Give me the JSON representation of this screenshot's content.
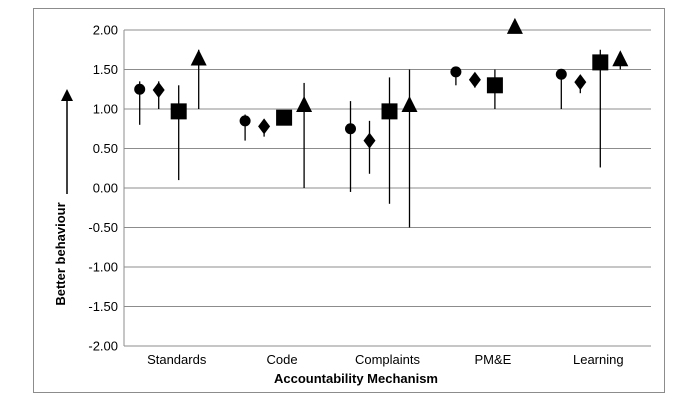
{
  "chart_data": {
    "type": "scatter",
    "title": "",
    "xlabel": "Accountability Mechanism",
    "ylabel": "Better behaviour",
    "ylim": [
      -2.0,
      2.0
    ],
    "y_ticks": [
      "2.00",
      "1.50",
      "1.00",
      "0.50",
      "0.00",
      "-0.50",
      "-1.00",
      "-1.50",
      "-2.00"
    ],
    "y_tick_values": [
      2.0,
      1.5,
      1.0,
      0.5,
      0.0,
      -0.5,
      -1.0,
      -1.5,
      -2.0
    ],
    "categories": [
      "Standards",
      "Code",
      "Complaints",
      "PM&E",
      "Learning"
    ],
    "grid": true,
    "legend": "none",
    "colors": {
      "marker": "#000000",
      "grid": "#8c8c8c",
      "errorbar": "#000000"
    },
    "series": [
      {
        "marker": "circle",
        "values": [
          1.25,
          0.85,
          0.75,
          1.47,
          1.44
        ],
        "low": [
          0.8,
          0.6,
          -0.05,
          1.3,
          1.0
        ],
        "high": [
          1.35,
          0.93,
          1.1,
          1.5,
          1.5
        ]
      },
      {
        "marker": "diamond",
        "values": [
          1.24,
          0.78,
          0.6,
          1.37,
          1.34
        ],
        "low": [
          1.0,
          0.65,
          0.18,
          1.27,
          1.2
        ],
        "high": [
          1.35,
          0.85,
          0.85,
          1.45,
          1.42
        ]
      },
      {
        "marker": "square",
        "values": [
          0.97,
          0.89,
          0.97,
          1.3,
          1.59
        ],
        "low": [
          0.1,
          0.89,
          -0.2,
          1.0,
          0.26
        ],
        "high": [
          1.3,
          0.89,
          1.4,
          1.5,
          1.75
        ]
      },
      {
        "marker": "triangle",
        "values": [
          1.64,
          1.05,
          1.05,
          2.04,
          1.63
        ],
        "low": [
          1.0,
          0.0,
          -0.5,
          2.04,
          1.5
        ],
        "high": [
          1.75,
          1.33,
          1.5,
          2.04,
          1.7
        ]
      }
    ]
  }
}
